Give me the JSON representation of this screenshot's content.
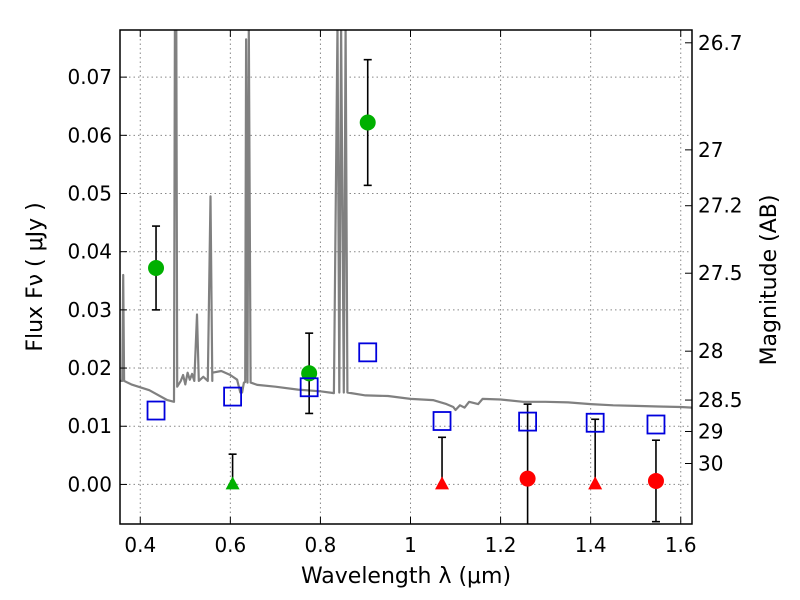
{
  "chart_data": {
    "type": "scatter",
    "xlabel": "Wavelength  λ (μm)",
    "ylabel": "Flux  Fν  ( μJy )",
    "ylabel_right": "Magnitude (AB)",
    "xlim": [
      0.355,
      1.625
    ],
    "ylim": [
      -0.0068,
      0.0781
    ],
    "grid": true,
    "x_ticks": [
      0.4,
      0.6,
      0.8,
      1.0,
      1.2,
      1.4,
      1.6
    ],
    "x_tick_labels": [
      "0.4",
      "0.6",
      "0.8",
      "1",
      "1.2",
      "1.4",
      "1.6"
    ],
    "y_ticks": [
      0.0,
      0.01,
      0.02,
      0.03,
      0.04,
      0.05,
      0.06,
      0.07
    ],
    "y_tick_labels": [
      "0.00",
      "0.01",
      "0.02",
      "0.03",
      "0.04",
      "0.05",
      "0.06",
      "0.07"
    ],
    "right_ticks": [
      {
        "label": "26.7",
        "flux": 0.0759
      },
      {
        "label": "27",
        "flux": 0.0575
      },
      {
        "label": "27.2",
        "flux": 0.0479
      },
      {
        "label": "27.5",
        "flux": 0.0363
      },
      {
        "label": "28",
        "flux": 0.0229
      },
      {
        "label": "28.5",
        "flux": 0.0145
      },
      {
        "label": "29",
        "flux": 0.0091
      },
      {
        "label": "30",
        "flux": 0.0036
      }
    ],
    "colors": {
      "model": "#808080",
      "detection": "#00b000",
      "upper_limit_green": "#00b000",
      "upper_limit_red": "#ff0000",
      "nondetection": "#ff0000",
      "model_flux": "#0000dd",
      "errorbar": "#000000",
      "grid": "#888888"
    },
    "series": [
      {
        "role": "detections",
        "marker": "circle",
        "points": [
          {
            "x": 0.435,
            "y": 0.0372,
            "err_lo": 0.0072,
            "err_hi": 0.0072
          },
          {
            "x": 0.775,
            "y": 0.0191,
            "err_lo": 0.0069,
            "err_hi": 0.0069
          },
          {
            "x": 0.905,
            "y": 0.0622,
            "err_lo": 0.0108,
            "err_hi": 0.0108
          }
        ]
      },
      {
        "role": "upper_limits",
        "marker": "triangle",
        "points": [
          {
            "x": 0.605,
            "y": 0.0,
            "err_hi": 0.0052,
            "color": "green"
          },
          {
            "x": 1.07,
            "y": 0.0,
            "err_hi": 0.0081,
            "color": "red"
          },
          {
            "x": 1.41,
            "y": 0.0,
            "err_hi": 0.0112,
            "color": "red"
          }
        ]
      },
      {
        "role": "nondetections",
        "marker": "circle",
        "points": [
          {
            "x": 1.26,
            "y": 0.001,
            "err_lo": 0.0128,
            "err_hi": 0.0128
          },
          {
            "x": 1.545,
            "y": 0.0006,
            "err_lo": 0.007,
            "err_hi": 0.007
          }
        ]
      },
      {
        "role": "model_fluxes",
        "marker": "open-square",
        "points": [
          {
            "x": 0.435,
            "y": 0.0127
          },
          {
            "x": 0.605,
            "y": 0.0151
          },
          {
            "x": 0.775,
            "y": 0.0167
          },
          {
            "x": 0.905,
            "y": 0.0227
          },
          {
            "x": 1.07,
            "y": 0.0109
          },
          {
            "x": 1.26,
            "y": 0.0108
          },
          {
            "x": 1.41,
            "y": 0.0106
          },
          {
            "x": 1.545,
            "y": 0.0103
          }
        ]
      },
      {
        "role": "model_spectrum",
        "line": true,
        "points": [
          [
            0.355,
            0.0178
          ],
          [
            0.36,
            0.0178
          ],
          [
            0.362,
            0.036
          ],
          [
            0.364,
            0.0178
          ],
          [
            0.38,
            0.0172
          ],
          [
            0.42,
            0.0162
          ],
          [
            0.46,
            0.0145
          ],
          [
            0.475,
            0.0142
          ],
          [
            0.477,
            0.079
          ],
          [
            0.48,
            0.079
          ],
          [
            0.482,
            0.0168
          ],
          [
            0.49,
            0.0178
          ],
          [
            0.495,
            0.0188
          ],
          [
            0.5,
            0.0172
          ],
          [
            0.505,
            0.0192
          ],
          [
            0.51,
            0.018
          ],
          [
            0.515,
            0.019
          ],
          [
            0.52,
            0.0178
          ],
          [
            0.526,
            0.0292
          ],
          [
            0.53,
            0.0178
          ],
          [
            0.54,
            0.0185
          ],
          [
            0.55,
            0.0178
          ],
          [
            0.556,
            0.0495
          ],
          [
            0.56,
            0.0178
          ],
          [
            0.56,
            0.0192
          ],
          [
            0.58,
            0.0195
          ],
          [
            0.6,
            0.0188
          ],
          [
            0.615,
            0.018
          ],
          [
            0.622,
            0.0158
          ],
          [
            0.626,
            0.0158
          ],
          [
            0.63,
            0.0175
          ],
          [
            0.633,
            0.0176
          ],
          [
            0.635,
            0.0765
          ],
          [
            0.638,
            0.0175
          ],
          [
            0.641,
            0.079
          ],
          [
            0.645,
            0.0175
          ],
          [
            0.66,
            0.0171
          ],
          [
            0.7,
            0.0168
          ],
          [
            0.75,
            0.0163
          ],
          [
            0.8,
            0.016
          ],
          [
            0.83,
            0.0157
          ],
          [
            0.838,
            0.079
          ],
          [
            0.842,
            0.0158
          ],
          [
            0.846,
            0.079
          ],
          [
            0.852,
            0.0158
          ],
          [
            0.856,
            0.079
          ],
          [
            0.86,
            0.0158
          ],
          [
            0.9,
            0.0153
          ],
          [
            0.95,
            0.0152
          ],
          [
            1.0,
            0.0147
          ],
          [
            1.05,
            0.0145
          ],
          [
            1.08,
            0.0138
          ],
          [
            1.095,
            0.0133
          ],
          [
            1.1,
            0.0128
          ],
          [
            1.11,
            0.0136
          ],
          [
            1.12,
            0.0132
          ],
          [
            1.13,
            0.0142
          ],
          [
            1.15,
            0.0138
          ],
          [
            1.16,
            0.0147
          ],
          [
            1.2,
            0.0146
          ],
          [
            1.25,
            0.0142
          ],
          [
            1.3,
            0.0142
          ],
          [
            1.35,
            0.0141
          ],
          [
            1.4,
            0.0138
          ],
          [
            1.45,
            0.0136
          ],
          [
            1.5,
            0.0135
          ],
          [
            1.55,
            0.0134
          ],
          [
            1.6,
            0.0133
          ],
          [
            1.625,
            0.0132
          ]
        ]
      }
    ]
  }
}
